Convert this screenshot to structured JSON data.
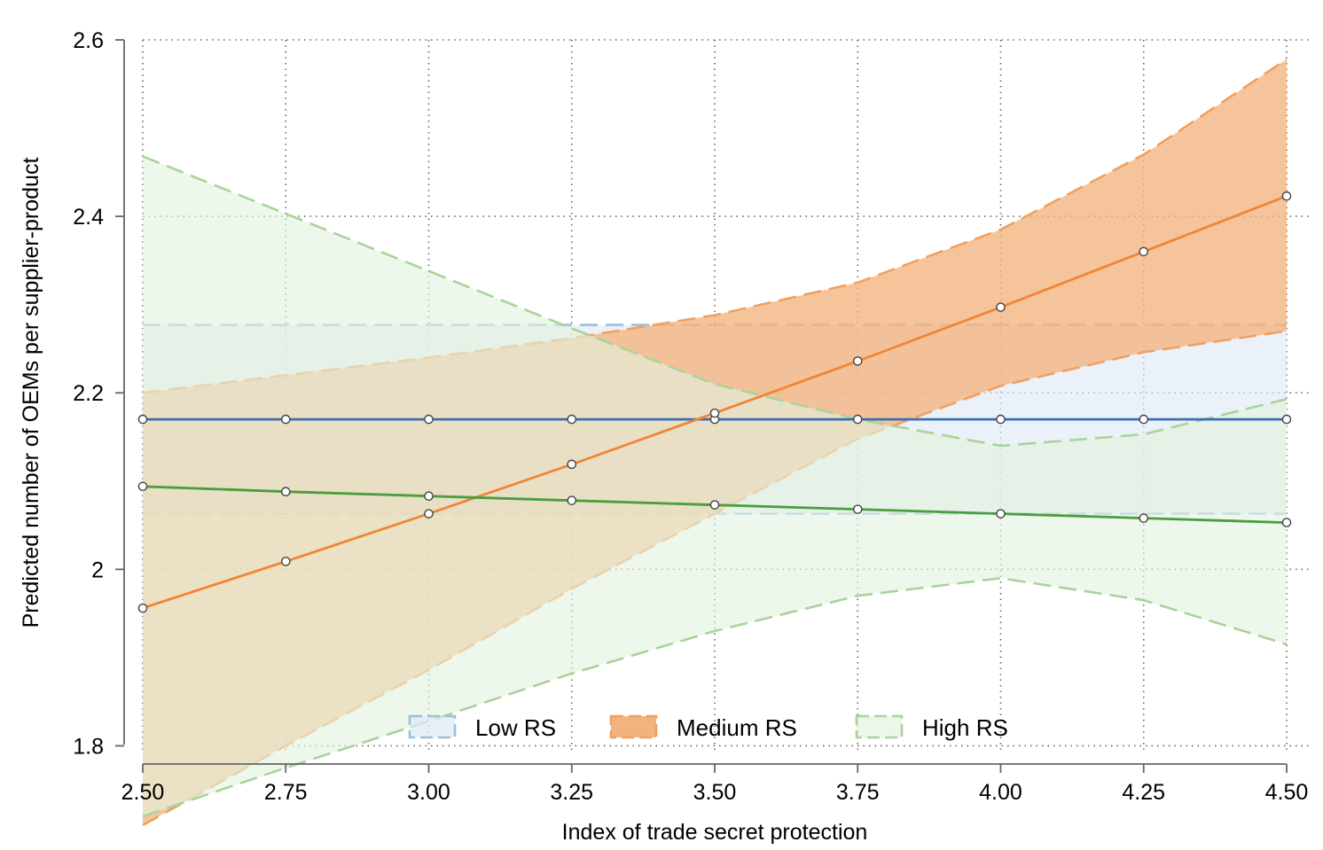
{
  "chart_data": {
    "type": "line",
    "title": "",
    "xlabel": "Index of trade secret protection",
    "ylabel": "Predicted number of OEMs per supplier-product",
    "x": [
      2.5,
      2.75,
      3.0,
      3.25,
      3.5,
      3.75,
      4.0,
      4.25,
      4.5
    ],
    "x_tick_labels": [
      "2.50",
      "2.75",
      "3.00",
      "3.25",
      "3.50",
      "3.75",
      "4.00",
      "4.25",
      "4.50"
    ],
    "y_ticks": [
      1.8,
      2.0,
      2.2,
      2.4,
      2.6
    ],
    "y_tick_labels": [
      "1.8",
      "2",
      "2.2",
      "2.4",
      "2.6"
    ],
    "xlim": [
      2.5,
      4.5
    ],
    "ylim": [
      1.7,
      2.6
    ],
    "grid": true,
    "legend_position": "bottom-center",
    "series": [
      {
        "name": "Low RS",
        "line_color": "#3a6fb0",
        "fill_color": "#dde9f4",
        "edge_color": "#9bbfdd",
        "values": [
          2.17,
          2.17,
          2.17,
          2.17,
          2.17,
          2.17,
          2.17,
          2.17,
          2.17
        ],
        "upper": [
          2.277,
          2.277,
          2.277,
          2.277,
          2.277,
          2.277,
          2.277,
          2.277,
          2.277
        ],
        "lower": [
          2.063,
          2.063,
          2.063,
          2.063,
          2.063,
          2.063,
          2.063,
          2.063,
          2.063
        ]
      },
      {
        "name": "Medium RS",
        "line_color": "#ef8636",
        "fill_color": "#f3b37e",
        "edge_color": "#f0a060",
        "values": [
          1.956,
          2.009,
          2.063,
          2.119,
          2.177,
          2.236,
          2.297,
          2.36,
          2.423
        ],
        "upper": [
          2.2,
          2.22,
          2.24,
          2.262,
          2.288,
          2.325,
          2.385,
          2.47,
          2.578
        ],
        "lower": [
          1.71,
          1.8,
          1.886,
          1.978,
          2.063,
          2.148,
          2.208,
          2.246,
          2.27
        ]
      },
      {
        "name": "High RS",
        "line_color": "#4a9e3f",
        "fill_color": "#e4f2df",
        "edge_color": "#a8d49a",
        "values": [
          2.094,
          2.088,
          2.083,
          2.078,
          2.073,
          2.068,
          2.063,
          2.058,
          2.053
        ],
        "upper": [
          2.468,
          2.403,
          2.338,
          2.273,
          2.21,
          2.17,
          2.14,
          2.153,
          2.193
        ],
        "lower": [
          1.72,
          1.775,
          1.828,
          1.882,
          1.93,
          1.97,
          1.99,
          1.965,
          1.915
        ]
      }
    ]
  }
}
